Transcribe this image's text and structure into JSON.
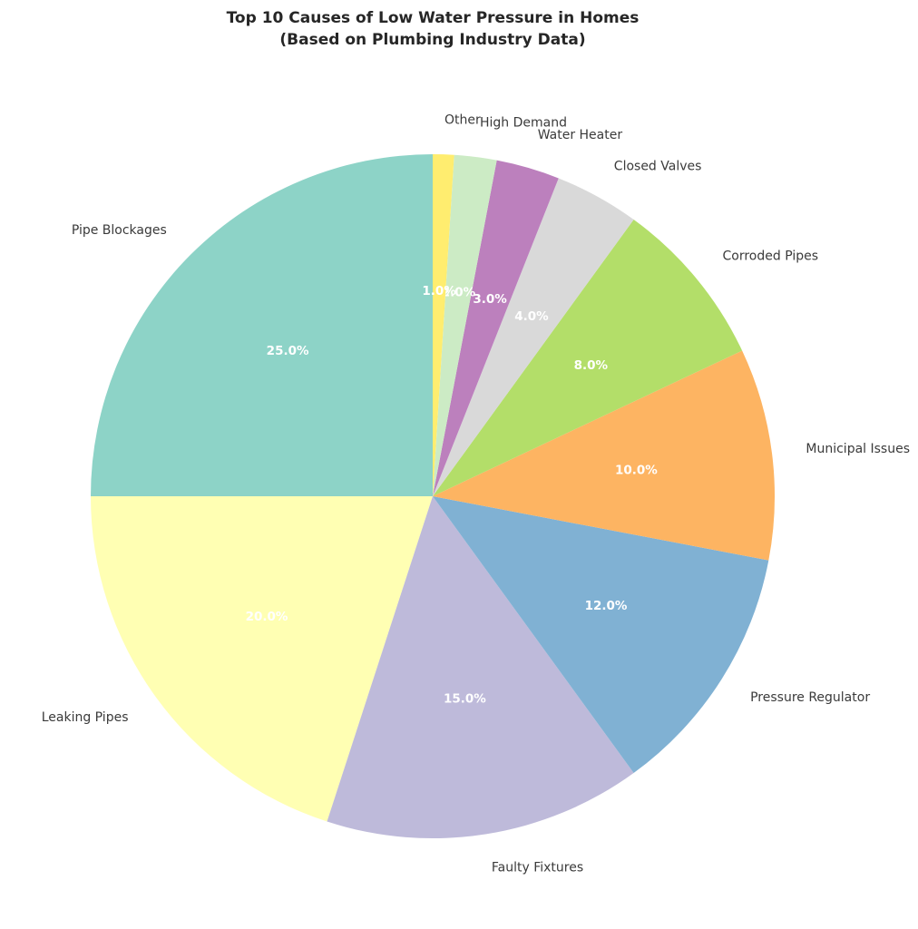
{
  "chart_data": {
    "type": "pie",
    "title": "Top 10 Causes of Low Water Pressure in Homes\n(Based on Plumbing Industry Data)",
    "categories": [
      "Pipe Blockages",
      "Leaking Pipes",
      "Faulty Fixtures",
      "Pressure Regulator",
      "Municipal Issues",
      "Corroded Pipes",
      "Closed Valves",
      "Water Heater",
      "High Demand",
      "Other"
    ],
    "values": [
      25.0,
      20.0,
      15.0,
      12.0,
      10.0,
      8.0,
      4.0,
      3.0,
      2.0,
      1.0
    ],
    "percent_labels": [
      "25.0%",
      "20.0%",
      "15.0%",
      "12.0%",
      "10.0%",
      "8.0%",
      "4.0%",
      "3.0%",
      "2.0%",
      "1.0%"
    ],
    "colors": [
      "#8DD3C7",
      "#FFFFB3",
      "#BEBADA",
      "#80B1D3",
      "#FDB462",
      "#B3DE69",
      "#D9D9D9",
      "#BC80BD",
      "#CCEBC5",
      "#FFED6F"
    ],
    "start_angle_deg": 90,
    "direction": "counterclockwise",
    "label_radius_ratio": 1.1,
    "pct_radius_ratio": 0.6,
    "legend": "none",
    "background_color": "#ffffff",
    "title_color": "#262626",
    "label_color": "#3a3a3a",
    "pct_label_color": "#ffffff"
  }
}
